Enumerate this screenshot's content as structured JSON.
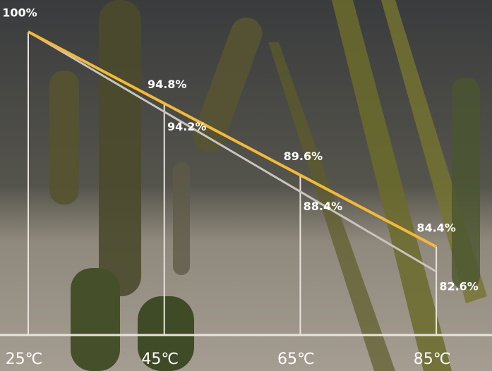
{
  "chart_data": {
    "type": "line",
    "categories": [
      "25℃",
      "45℃",
      "65℃",
      "85℃"
    ],
    "series": [
      {
        "color": "#f2b93a",
        "values": [
          100,
          94.8,
          89.6,
          84.4
        ],
        "value_labels": [
          "100%",
          "94.8%",
          "89.6%",
          "84.4%"
        ]
      },
      {
        "color": "#c9c4bd",
        "values": [
          100,
          94.2,
          88.4,
          82.6
        ],
        "value_labels": [
          "100%",
          "94.2%",
          "88.4%",
          "82.6%"
        ]
      }
    ],
    "ylim": [
      78,
      100
    ]
  }
}
